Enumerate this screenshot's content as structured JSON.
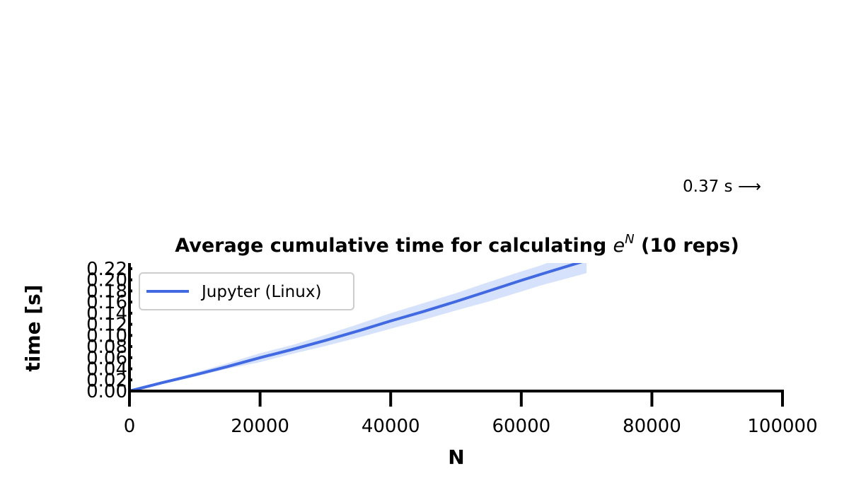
{
  "chart_data": {
    "type": "line",
    "title_prefix": "Average cumulative time for calculating ",
    "title_math_base": "e",
    "title_math_sup": "N",
    "title_suffix": " (10 reps)",
    "xlabel": "N",
    "ylabel": "time [s]",
    "xlim": [
      0,
      100000
    ],
    "ylim": [
      0,
      0.22
    ],
    "xticks": [
      0,
      20000,
      40000,
      60000,
      80000,
      100000
    ],
    "xtick_labels": [
      "0",
      "20000",
      "40000",
      "60000",
      "80000",
      "100000"
    ],
    "yticks": [
      0,
      0.02,
      0.04,
      0.06,
      0.08,
      0.1,
      0.12,
      0.14,
      0.16,
      0.18,
      0.2,
      0.22
    ],
    "ytick_labels": [
      "0.00",
      "0.02",
      "0.04",
      "0.06",
      "0.08",
      "0.10",
      "0.12",
      "0.14",
      "0.16",
      "0.18",
      "0.20",
      "0.22"
    ],
    "legend_position": "upper-left",
    "grid": false,
    "annotation": "0.37 s ⟶",
    "series": [
      {
        "name": "Jupyter (Linux)",
        "color": "#4169e1",
        "band_color": "#d6e2fb",
        "x": [
          0,
          5000,
          10000,
          15000,
          20000,
          25000,
          30000,
          35000,
          40000,
          45000,
          50000,
          55000,
          60000,
          63000,
          70000
        ],
        "y": [
          0,
          0.015,
          0.029,
          0.044,
          0.06,
          0.075,
          0.091,
          0.108,
          0.126,
          0.143,
          0.161,
          0.18,
          0.199,
          0.21,
          0.235
        ],
        "y_lower": [
          0,
          0.013,
          0.026,
          0.04,
          0.052,
          0.067,
          0.081,
          0.096,
          0.112,
          0.128,
          0.145,
          0.161,
          0.179,
          0.19,
          0.212
        ],
        "y_upper": [
          0,
          0.017,
          0.033,
          0.05,
          0.068,
          0.083,
          0.101,
          0.12,
          0.14,
          0.158,
          0.176,
          0.196,
          0.215,
          0.226,
          0.258
        ]
      }
    ]
  }
}
